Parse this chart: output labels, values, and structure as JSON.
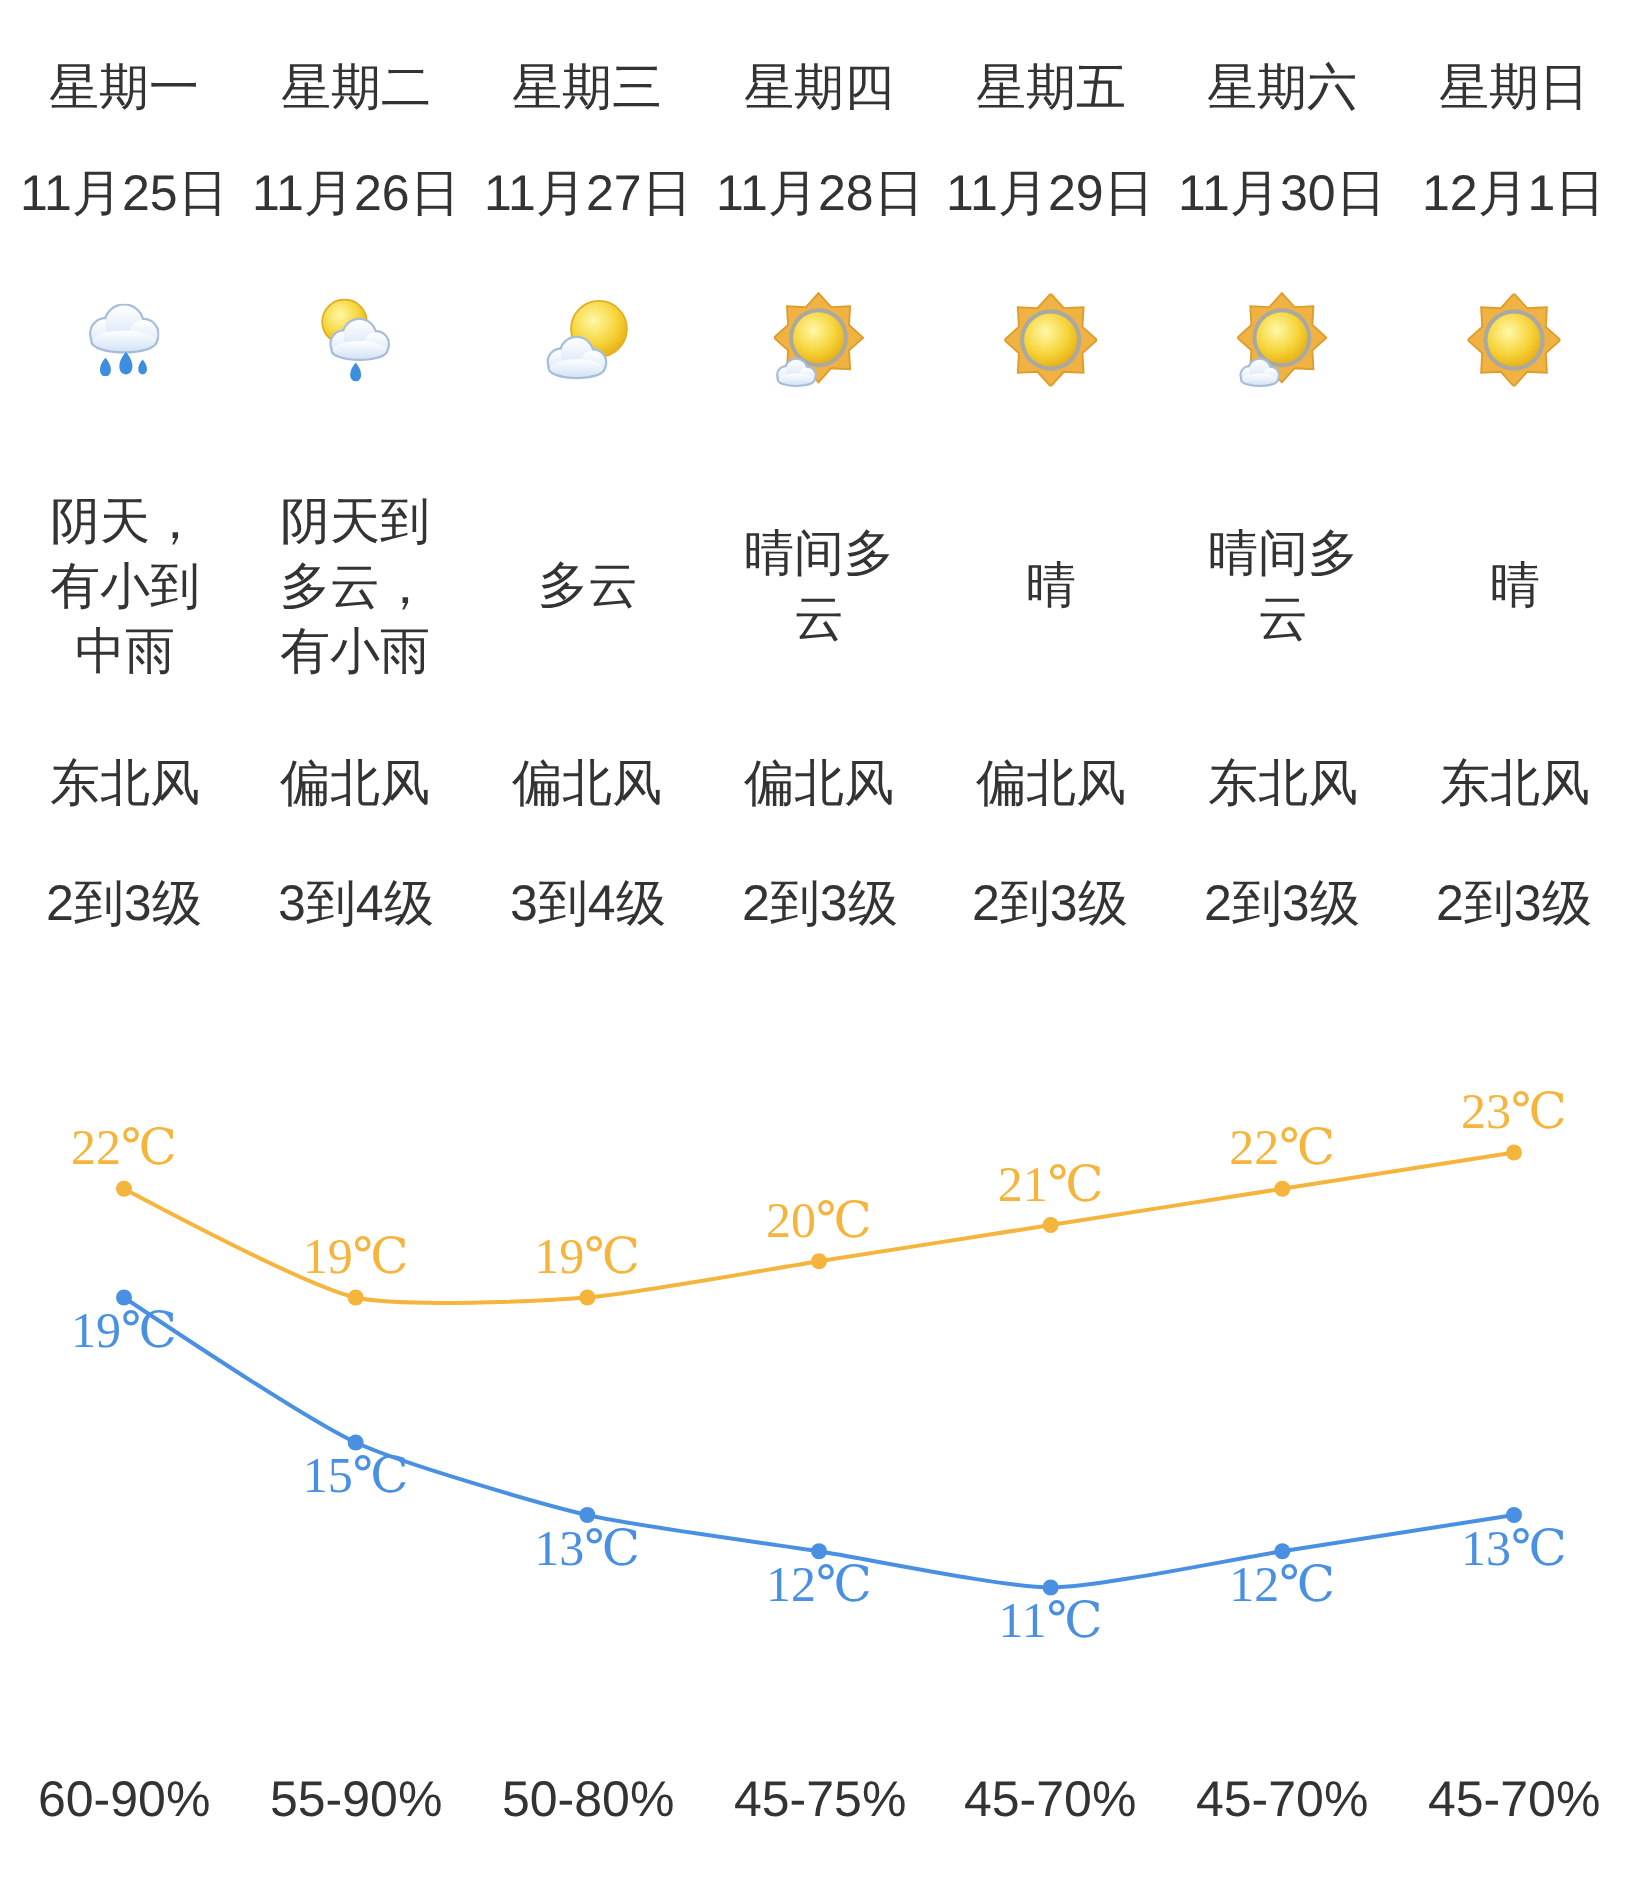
{
  "chart_data": {
    "type": "line",
    "categories": [
      "星期一",
      "星期二",
      "星期三",
      "星期四",
      "星期五",
      "星期六",
      "星期日"
    ],
    "series": [
      {
        "color": "#f5b43c",
        "values": [
          22,
          19,
          19,
          20,
          21,
          22,
          23
        ],
        "value_labels": [
          "22℃",
          "19℃",
          "19℃",
          "20℃",
          "21℃",
          "22℃",
          "23℃"
        ]
      },
      {
        "color": "#4a90e2",
        "values": [
          19,
          15,
          13,
          12,
          11,
          12,
          13
        ],
        "value_labels": [
          "19℃",
          "15℃",
          "13℃",
          "12℃",
          "11℃",
          "12℃",
          "13℃"
        ]
      }
    ],
    "marker": "circle",
    "line_style": "solid",
    "annotations": [
      "11月25日",
      "11月26日",
      "11月27日",
      "11月28日",
      "11月29日",
      "11月30日",
      "12月1日",
      "阴天，有小到中雨",
      "阴天到多云，有小雨",
      "多云",
      "晴间多云",
      "晴",
      "晴间多云",
      "晴",
      "东北风",
      "偏北风",
      "偏北风",
      "偏北风",
      "偏北风",
      "东北风",
      "东北风",
      "2到3级",
      "3到4级",
      "3到4级",
      "2到3级",
      "2到3级",
      "2到3级",
      "2到3级",
      "60-90%",
      "55-90%",
      "50-80%",
      "45-75%",
      "45-70%",
      "45-70%",
      "45-70%"
    ]
  }
}
